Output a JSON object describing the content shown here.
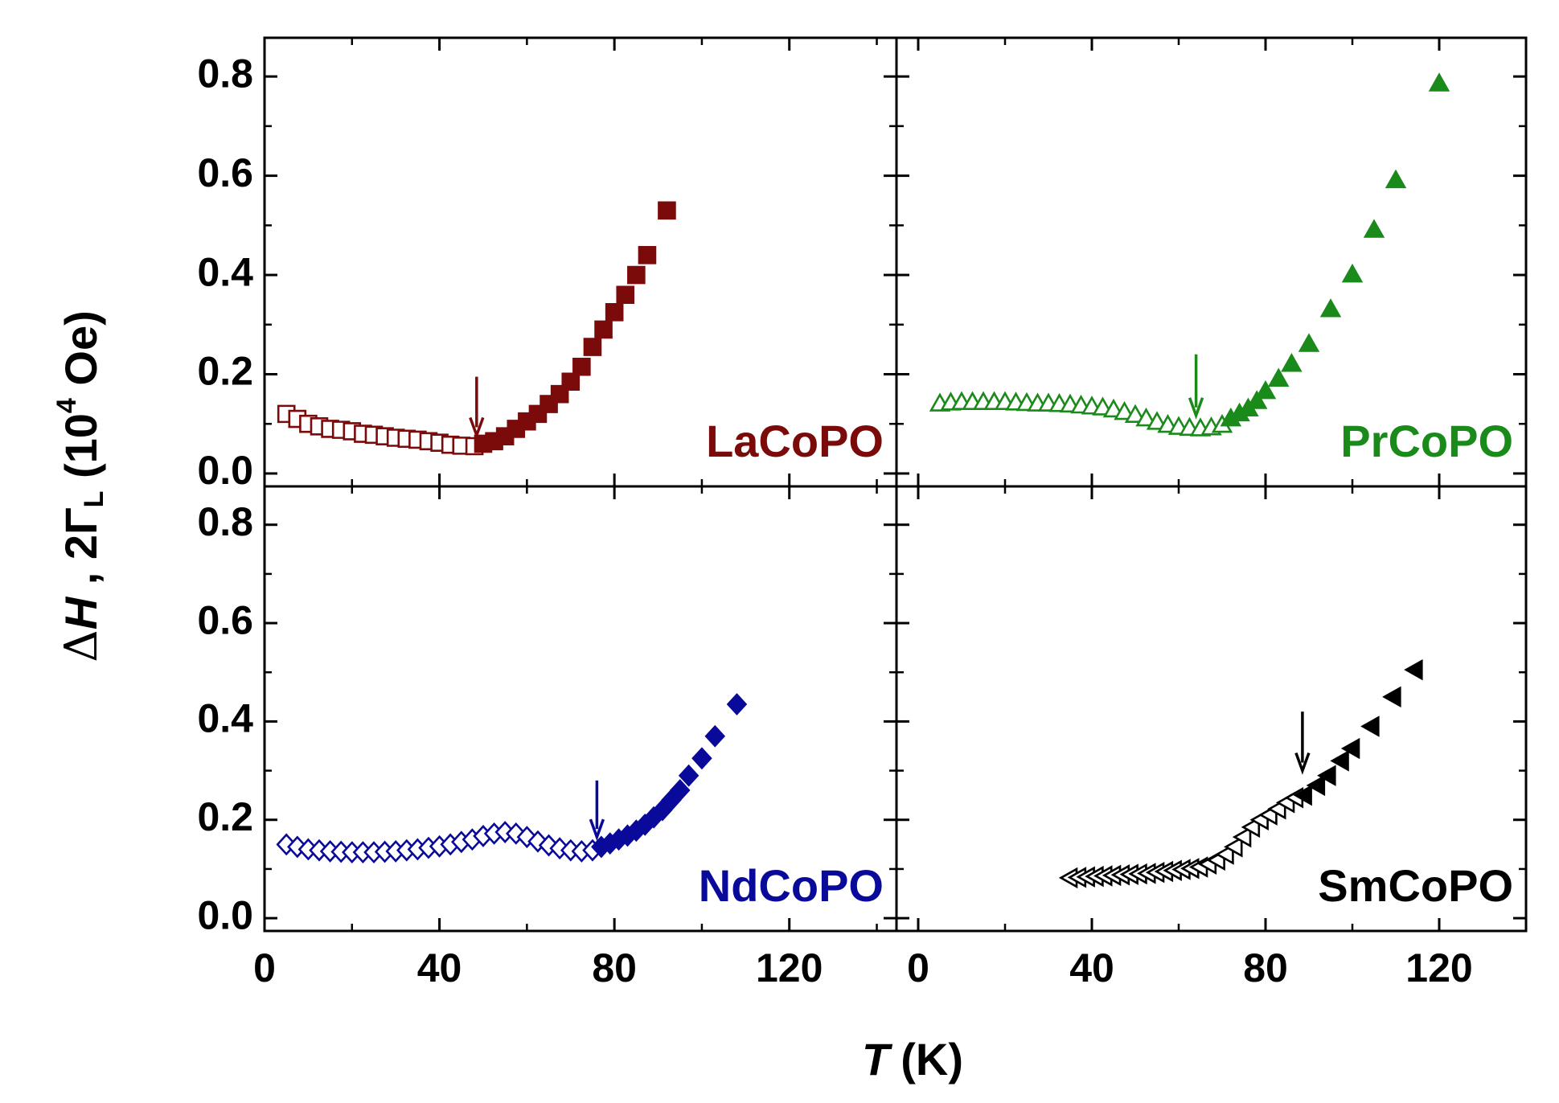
{
  "x_label": [
    "T",
    "(K)"
  ],
  "y_label": [
    "Δ",
    "H",
    " , 2Γ",
    "L",
    " (10",
    "4",
    " Oe)"
  ],
  "chart_data": [
    {
      "type": "scatter",
      "label": "LaCoPO",
      "label_color": "#7b0a0a",
      "xlim": [
        0,
        144.5
      ],
      "ylim": [
        -0.026,
        0.878
      ],
      "xticks": [
        0,
        40,
        80,
        120
      ],
      "yticks": [
        {
          "value": 0,
          "label": "0.0"
        },
        {
          "value": 0.2,
          "label": "0.2"
        },
        {
          "value": 0.4,
          "label": "0.4"
        },
        {
          "value": 0.6,
          "label": "0.6"
        },
        {
          "value": 0.8,
          "label": "0.8"
        }
      ],
      "show_xticklabels": false,
      "show_yticklabels": true,
      "series": [
        {
          "color": "#7b0a0a",
          "marker": "square",
          "filled": false,
          "x": [
            5,
            7.5,
            10,
            12.5,
            15,
            17.5,
            20,
            22.5,
            25,
            27.5,
            30,
            32.5,
            35,
            37.5,
            40,
            42.5,
            45,
            48
          ],
          "values": [
            0.12,
            0.11,
            0.1,
            0.095,
            0.09,
            0.088,
            0.085,
            0.08,
            0.078,
            0.075,
            0.072,
            0.07,
            0.068,
            0.065,
            0.062,
            0.058,
            0.056,
            0.055
          ]
        },
        {
          "color": "#7b0a0a",
          "marker": "square",
          "filled": true,
          "x": [
            50,
            52.5,
            55,
            57.5,
            60,
            62.5,
            65,
            67.5,
            70,
            72.5,
            75,
            77.5,
            80,
            82.5,
            85,
            87.5,
            92
          ],
          "values": [
            0.06,
            0.065,
            0.075,
            0.09,
            0.105,
            0.12,
            0.14,
            0.16,
            0.185,
            0.215,
            0.255,
            0.29,
            0.325,
            0.36,
            0.4,
            0.44,
            0.53
          ]
        }
      ],
      "arrow": {
        "x": 48.5,
        "y": [
          0.195,
          0.077
        ]
      }
    },
    {
      "type": "scatter",
      "label": "PrCoPO",
      "label_color": "#1a8a1a",
      "xlim": [
        -5,
        140
      ],
      "ylim": [
        -0.026,
        0.878
      ],
      "xticks": [
        0,
        40,
        80,
        120
      ],
      "yticks": [
        {
          "value": 0,
          "label": "0.0"
        },
        {
          "value": 0.2,
          "label": "0.2"
        },
        {
          "value": 0.4,
          "label": "0.4"
        },
        {
          "value": 0.6,
          "label": "0.6"
        },
        {
          "value": 0.8,
          "label": "0.8"
        }
      ],
      "show_xticklabels": false,
      "show_yticklabels": false,
      "series": [
        {
          "color": "#1a8a1a",
          "marker": "triangle",
          "filled": false,
          "x": [
            5,
            7.5,
            10,
            12.5,
            15,
            17.5,
            20,
            22.5,
            25,
            27.5,
            30,
            32.5,
            35,
            37.5,
            40,
            42.5,
            45,
            47.5,
            50,
            52.5,
            55,
            57.5,
            60,
            62.5,
            65,
            67.5,
            70
          ],
          "values": [
            0.14,
            0.142,
            0.143,
            0.143,
            0.143,
            0.143,
            0.143,
            0.142,
            0.141,
            0.14,
            0.14,
            0.139,
            0.138,
            0.136,
            0.134,
            0.132,
            0.128,
            0.123,
            0.117,
            0.11,
            0.103,
            0.097,
            0.093,
            0.091,
            0.09,
            0.092,
            0.097
          ]
        },
        {
          "color": "#1a8a1a",
          "marker": "triangle",
          "filled": true,
          "x": [
            72,
            74,
            76,
            78,
            80,
            83,
            86,
            90,
            95,
            100,
            105,
            110,
            120
          ],
          "values": [
            0.11,
            0.12,
            0.13,
            0.145,
            0.165,
            0.19,
            0.22,
            0.26,
            0.33,
            0.4,
            0.49,
            0.59,
            0.785
          ]
        }
      ],
      "arrow": {
        "x": 64,
        "y": [
          0.24,
          0.117
        ]
      }
    },
    {
      "type": "scatter",
      "label": "NdCoPO",
      "label_color": "#0a0a9a",
      "xlim": [
        0,
        144.5
      ],
      "ylim": [
        -0.026,
        0.878
      ],
      "xticks": [
        0,
        40,
        80,
        120
      ],
      "yticks": [
        {
          "value": 0,
          "label": "0.0"
        },
        {
          "value": 0.2,
          "label": "0.2"
        },
        {
          "value": 0.4,
          "label": "0.4"
        },
        {
          "value": 0.6,
          "label": "0.6"
        },
        {
          "value": 0.8,
          "label": "0.8"
        }
      ],
      "show_xticklabels": true,
      "show_yticklabels": true,
      "series": [
        {
          "color": "#0a0a9a",
          "marker": "diamond",
          "filled": false,
          "x": [
            5,
            7.5,
            10,
            12.5,
            15,
            17.5,
            20,
            22.5,
            25,
            27.5,
            30,
            32.5,
            35,
            37.5,
            40,
            42.5,
            45,
            47.5,
            50,
            52.5,
            55,
            57.5,
            60,
            62.5,
            65,
            67.5,
            70,
            72.5,
            75
          ],
          "values": [
            0.15,
            0.145,
            0.14,
            0.138,
            0.136,
            0.135,
            0.134,
            0.134,
            0.134,
            0.135,
            0.136,
            0.138,
            0.14,
            0.143,
            0.146,
            0.15,
            0.155,
            0.16,
            0.167,
            0.172,
            0.175,
            0.172,
            0.165,
            0.156,
            0.148,
            0.142,
            0.138,
            0.136,
            0.138
          ]
        },
        {
          "color": "#0a0a9a",
          "marker": "diamond",
          "filled": true,
          "x": [
            77,
            79,
            81,
            83,
            85,
            87,
            89,
            91,
            93,
            95,
            97,
            100,
            103,
            108
          ],
          "values": [
            0.145,
            0.152,
            0.16,
            0.168,
            0.178,
            0.19,
            0.205,
            0.22,
            0.24,
            0.26,
            0.29,
            0.325,
            0.37,
            0.435
          ]
        }
      ],
      "arrow": {
        "x": 76,
        "y": [
          0.28,
          0.165
        ]
      }
    },
    {
      "type": "scatter",
      "label": "SmCoPO",
      "label_color": "#000000",
      "xlim": [
        -5,
        140
      ],
      "ylim": [
        -0.026,
        0.878
      ],
      "xticks": [
        0,
        40,
        80,
        120
      ],
      "yticks": [
        {
          "value": 0,
          "label": "0.0"
        },
        {
          "value": 0.2,
          "label": "0.2"
        },
        {
          "value": 0.4,
          "label": "0.4"
        },
        {
          "value": 0.6,
          "label": "0.6"
        },
        {
          "value": 0.8,
          "label": "0.8"
        }
      ],
      "show_xticklabels": true,
      "show_yticklabels": false,
      "series": [
        {
          "color": "#000000",
          "marker": "ltriangle",
          "filled": false,
          "x": [
            35,
            37,
            39,
            41,
            43,
            45,
            47,
            49,
            51,
            53,
            55,
            57,
            59,
            61,
            63,
            65,
            67,
            69,
            71,
            73,
            75,
            77,
            79,
            81,
            83,
            85,
            87
          ],
          "values": [
            0.082,
            0.083,
            0.084,
            0.085,
            0.086,
            0.087,
            0.088,
            0.089,
            0.09,
            0.091,
            0.093,
            0.095,
            0.097,
            0.099,
            0.101,
            0.104,
            0.11,
            0.118,
            0.13,
            0.145,
            0.165,
            0.185,
            0.2,
            0.21,
            0.222,
            0.235,
            0.245
          ]
        },
        {
          "color": "#000000",
          "marker": "ltriangle",
          "filled": true,
          "x": [
            89,
            92,
            94.5,
            97.5,
            100,
            104.5,
            109.5,
            114.5
          ],
          "values": [
            0.25,
            0.27,
            0.29,
            0.32,
            0.345,
            0.39,
            0.45,
            0.505
          ]
        }
      ],
      "arrow": {
        "x": 88.5,
        "y": [
          0.42,
          0.3
        ]
      }
    }
  ]
}
